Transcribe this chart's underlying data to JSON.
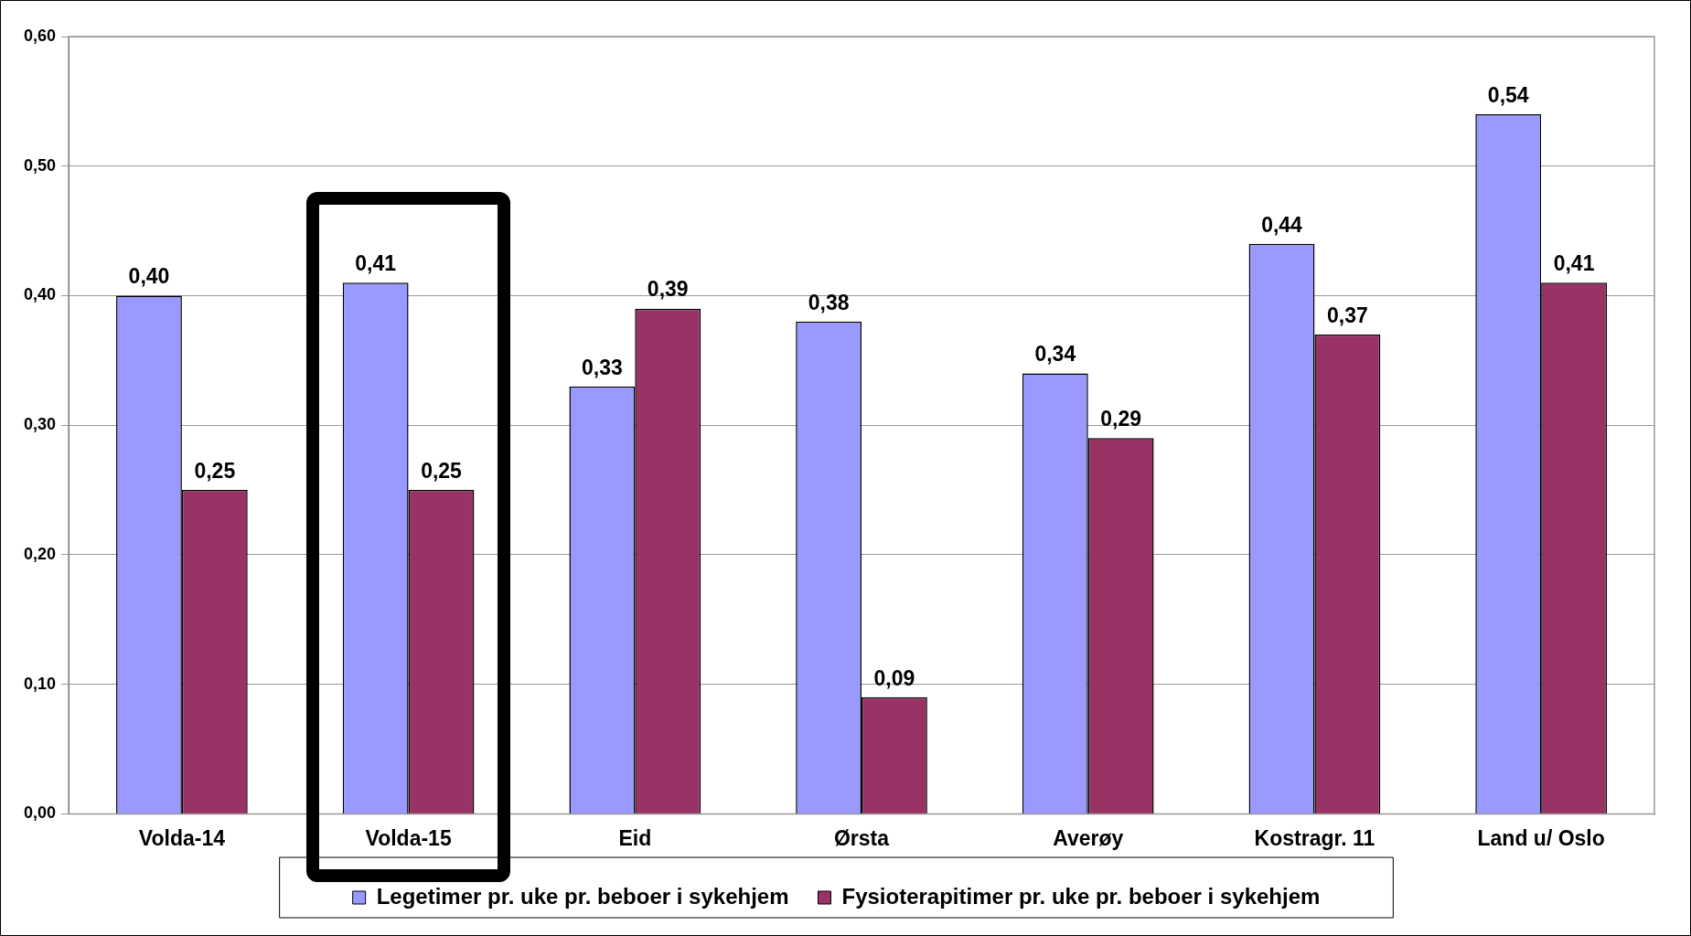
{
  "chart_data": {
    "type": "bar",
    "categories": [
      "Volda-14",
      "Volda-15",
      "Eid",
      "Ørsta",
      "Averøy",
      "Kostragr. 11",
      "Land u/ Oslo"
    ],
    "series": [
      {
        "name": "Legetimer pr. uke pr. beboer i sykehjem",
        "color": "#9999ff",
        "values": [
          0.4,
          0.41,
          0.33,
          0.38,
          0.34,
          0.44,
          0.54
        ],
        "value_labels": [
          "0,40",
          "0,41",
          "0,33",
          "0,38",
          "0,34",
          "0,44",
          "0,54"
        ]
      },
      {
        "name": "Fysioterapitimer pr. uke pr. beboer i sykehjem",
        "color": "#993366",
        "values": [
          0.25,
          0.25,
          0.39,
          0.09,
          0.29,
          0.37,
          0.41
        ],
        "value_labels": [
          "0,25",
          "0,25",
          "0,39",
          "0,09",
          "0,29",
          "0,37",
          "0,41"
        ]
      }
    ],
    "ylim": [
      0,
      0.6
    ],
    "yticks": [
      {
        "value": 0,
        "label": "0,00"
      },
      {
        "value": 0.1,
        "label": "0,10"
      },
      {
        "value": 0.2,
        "label": "0,20"
      },
      {
        "value": 0.3,
        "label": "0,30"
      },
      {
        "value": 0.4,
        "label": "0,40"
      },
      {
        "value": 0.5,
        "label": "0,50"
      },
      {
        "value": 0.6,
        "label": "0,60"
      }
    ],
    "grid": "y",
    "legend": "bottom"
  }
}
